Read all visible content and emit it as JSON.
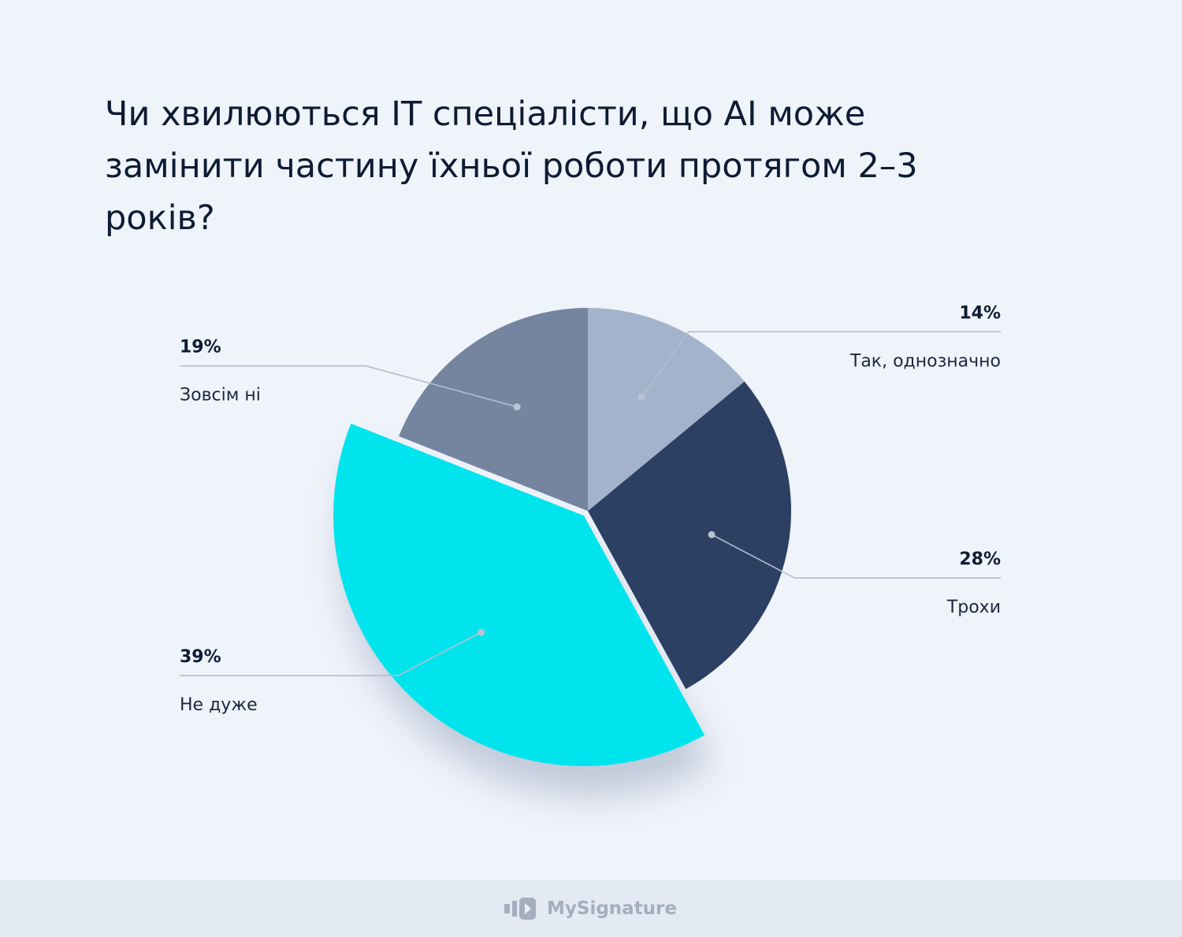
{
  "title": "Чи хвилюються IT спеціалісти, що AI може замінити частину їхньої роботи протягом 2–3 років?",
  "chart_data": {
    "type": "pie",
    "title": "Чи хвилюються IT спеціалісти, що AI може замінити частину їхньої роботи протягом 2–3 років?",
    "start": "12 o'clock, clockwise",
    "slices": [
      {
        "label": "Так, однозначно",
        "value": 14,
        "value_label": "14%",
        "color": "#a4b3cc",
        "label_side": "right"
      },
      {
        "label": "Трохи",
        "value": 28,
        "value_label": "28%",
        "color": "#2c4064",
        "label_side": "right"
      },
      {
        "label": "Не дуже",
        "value": 39,
        "value_label": "39%",
        "color": "#00e5ed",
        "label_side": "left",
        "exploded": true
      },
      {
        "label": "Зовсім ні",
        "value": 19,
        "value_label": "19%",
        "color": "#7585a0",
        "label_side": "left"
      }
    ],
    "leader_line_color": "#b4bdcd"
  },
  "footer": {
    "brand": "MySignature",
    "logo_icon": "mysignature-logo-icon",
    "background": "#e4eaf3"
  }
}
